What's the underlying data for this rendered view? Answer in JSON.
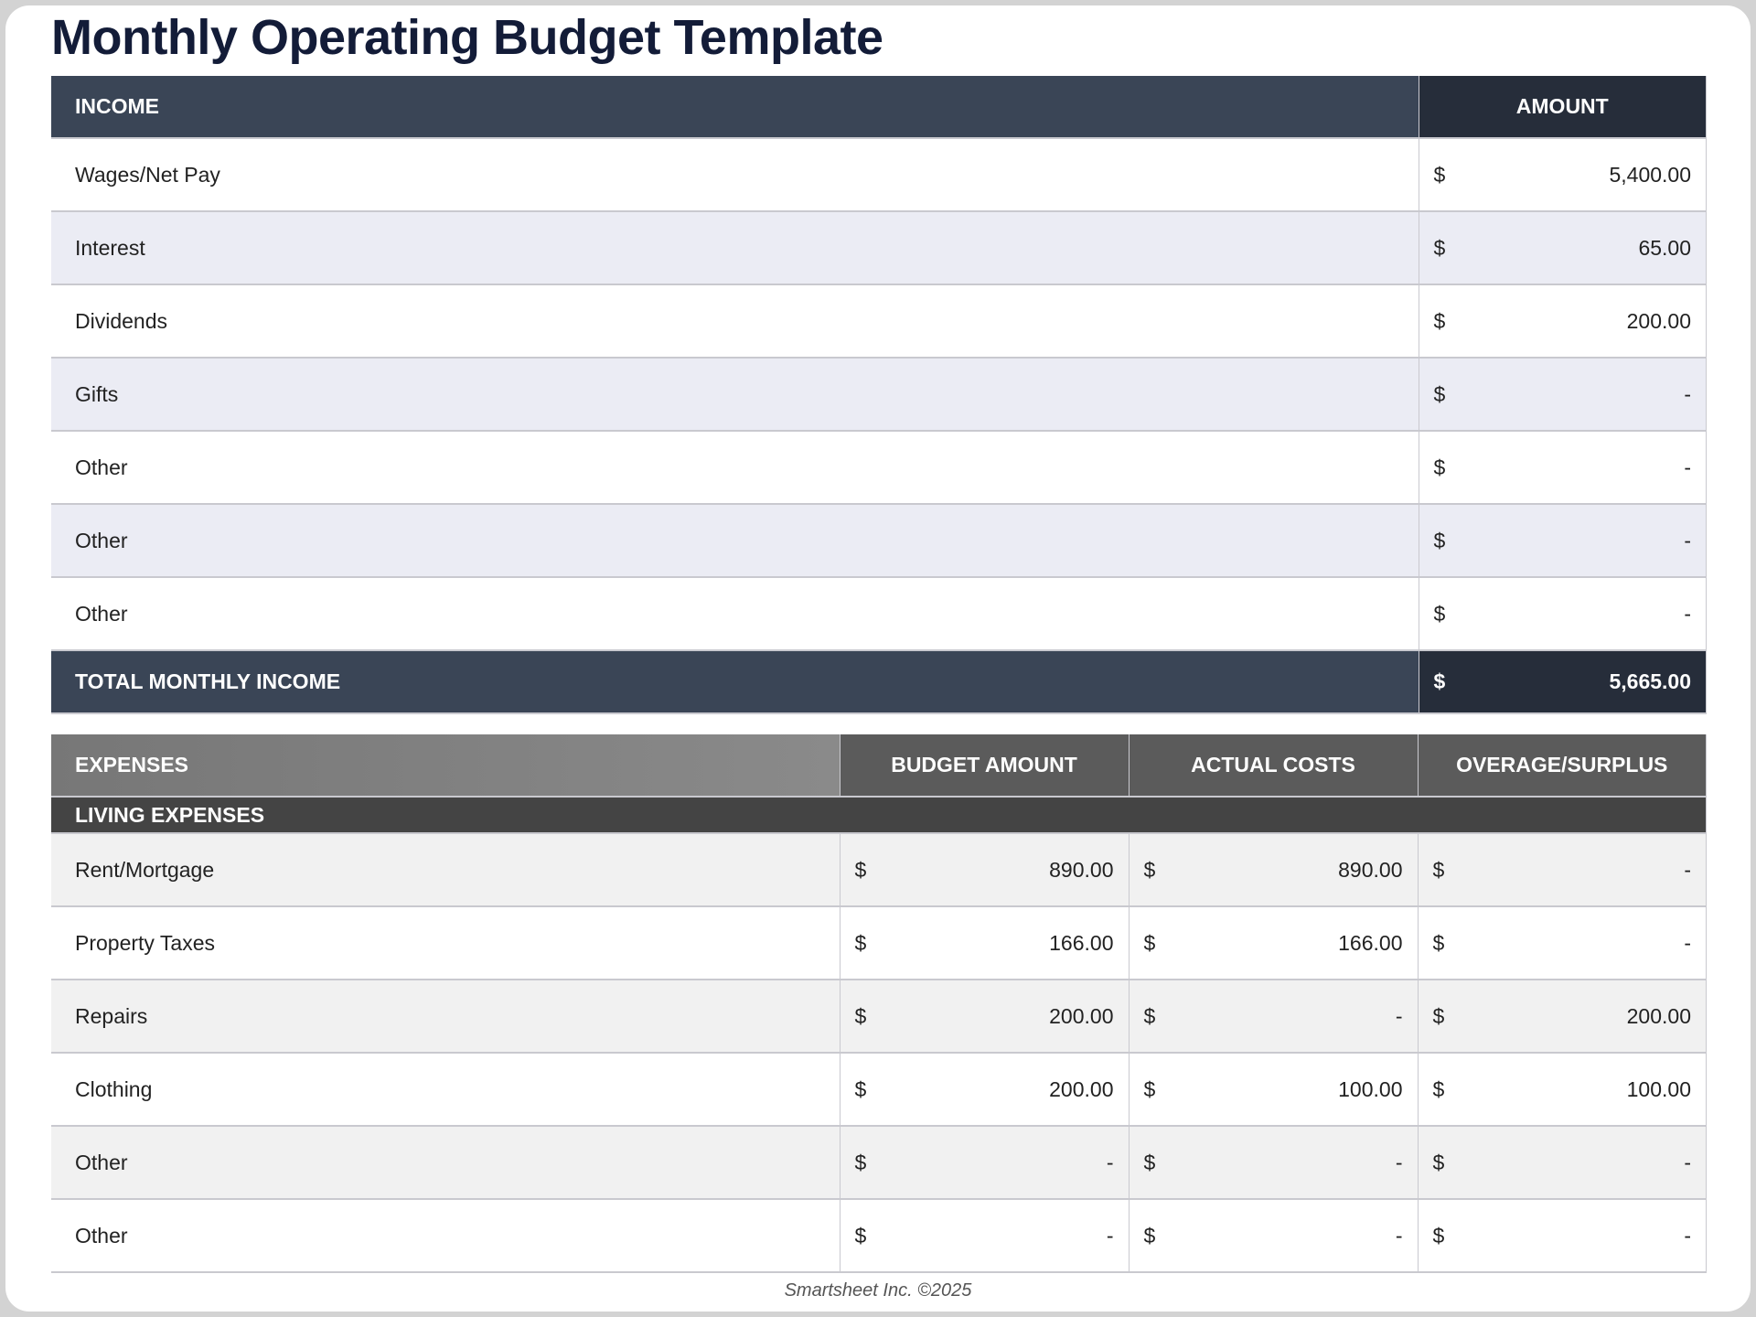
{
  "title": "Monthly Operating Budget Template",
  "income": {
    "headers": [
      "INCOME",
      "AMOUNT"
    ],
    "rows": [
      {
        "label": "Wages/Net Pay",
        "amount": "5,400.00"
      },
      {
        "label": "Interest",
        "amount": "65.00"
      },
      {
        "label": "Dividends",
        "amount": "200.00"
      },
      {
        "label": "Gifts",
        "amount": "-"
      },
      {
        "label": "Other",
        "amount": "-"
      },
      {
        "label": "Other",
        "amount": "-"
      },
      {
        "label": "Other",
        "amount": "-"
      }
    ],
    "total": {
      "label": "TOTAL MONTHLY INCOME",
      "amount": "5,665.00"
    }
  },
  "currency": "$",
  "expenses": {
    "headers": [
      "EXPENSES",
      "BUDGET AMOUNT",
      "ACTUAL COSTS",
      "OVERAGE/SURPLUS"
    ],
    "section": "LIVING EXPENSES",
    "rows": [
      {
        "label": "Rent/Mortgage",
        "budget": "890.00",
        "actual": "890.00",
        "overage": "-"
      },
      {
        "label": "Property Taxes",
        "budget": "166.00",
        "actual": "166.00",
        "overage": "-"
      },
      {
        "label": "Repairs",
        "budget": "200.00",
        "actual": "-",
        "overage": "200.00"
      },
      {
        "label": "Clothing",
        "budget": "200.00",
        "actual": "100.00",
        "overage": "100.00"
      },
      {
        "label": "Other",
        "budget": "-",
        "actual": "-",
        "overage": "-"
      },
      {
        "label": "Other",
        "budget": "-",
        "actual": "-",
        "overage": "-"
      }
    ]
  },
  "footer": "Smartsheet Inc. ©2025",
  "colors": {
    "income_header": "#3a4556",
    "amount_header": "#262d3a",
    "title": "#131c38",
    "section": "#444444"
  }
}
